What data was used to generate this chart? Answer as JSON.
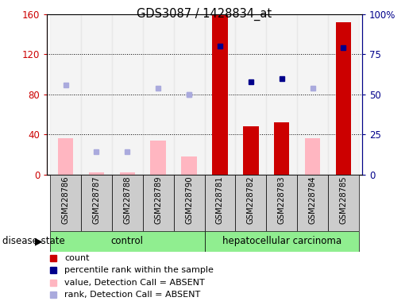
{
  "title": "GDS3087 / 1428834_at",
  "samples": [
    "GSM228786",
    "GSM228787",
    "GSM228788",
    "GSM228789",
    "GSM228790",
    "GSM228781",
    "GSM228782",
    "GSM228783",
    "GSM228784",
    "GSM228785"
  ],
  "count_values": [
    null,
    null,
    null,
    null,
    null,
    160,
    48,
    52,
    null,
    152
  ],
  "count_absent_values": [
    36,
    2,
    2,
    34,
    18,
    null,
    null,
    null,
    36,
    null
  ],
  "percentile_values": [
    null,
    null,
    null,
    null,
    null,
    80,
    58,
    60,
    null,
    79
  ],
  "percentile_absent_values": [
    56,
    14,
    14,
    null,
    50,
    null,
    null,
    null,
    54,
    null
  ],
  "rank_absent_values": [
    null,
    null,
    null,
    54,
    50,
    null,
    null,
    null,
    null,
    null
  ],
  "ylim_left": [
    0,
    160
  ],
  "ylim_right": [
    0,
    100
  ],
  "yticks_left": [
    0,
    40,
    80,
    120,
    160
  ],
  "yticks_right": [
    0,
    25,
    50,
    75,
    100
  ],
  "yticklabels_left": [
    "0",
    "40",
    "80",
    "120",
    "160"
  ],
  "yticklabels_right": [
    "0",
    "25",
    "50",
    "75",
    "100%"
  ],
  "count_color": "#CC0000",
  "count_absent_color": "#FFB6C1",
  "percentile_color": "#00008B",
  "percentile_absent_color": "#AAAADD",
  "bar_width": 0.5
}
